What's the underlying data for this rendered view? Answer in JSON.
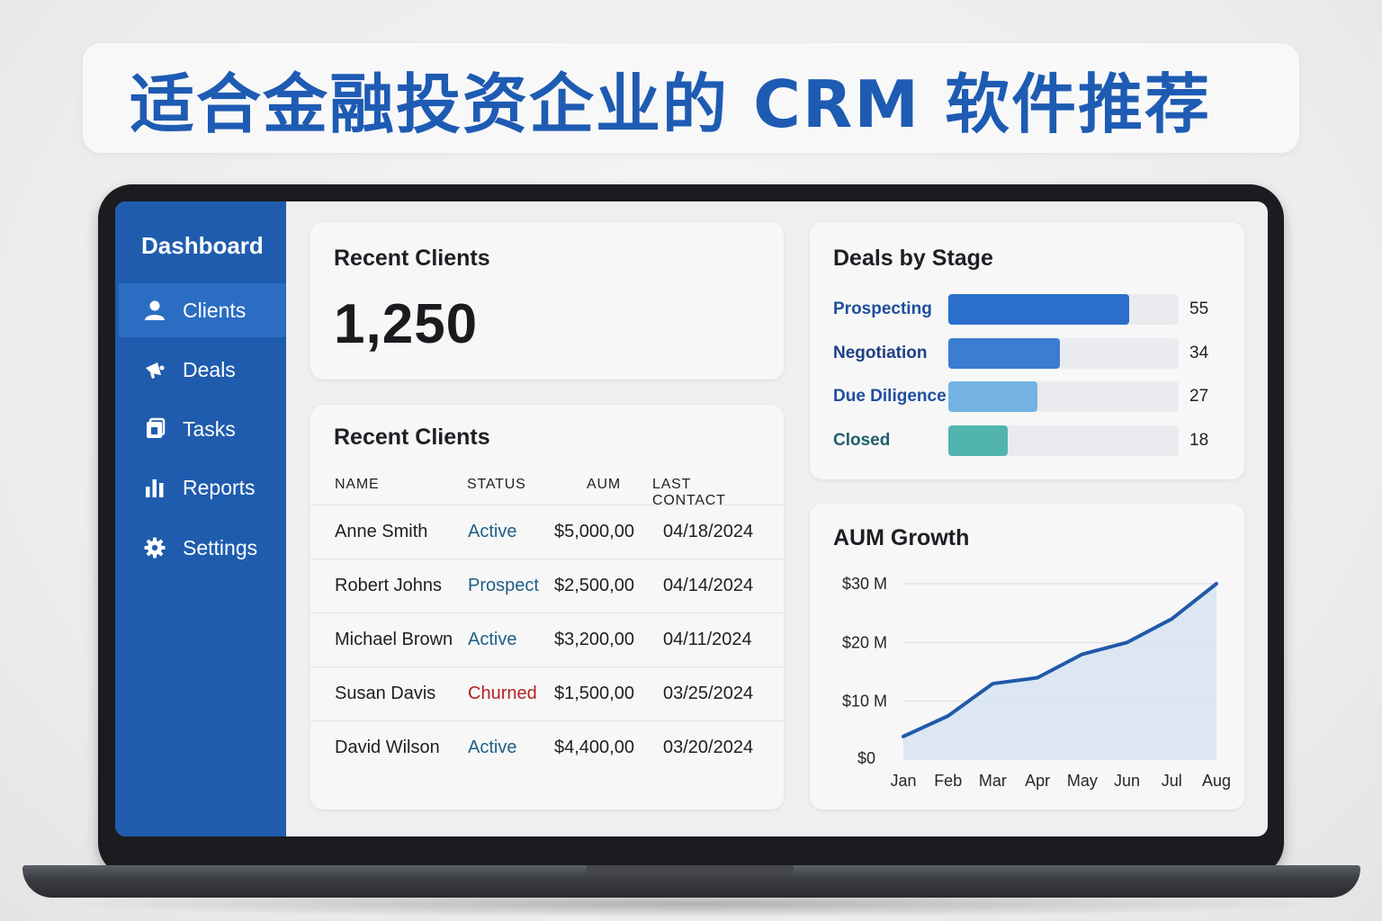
{
  "banner": {
    "title": "适合金融投资企业的 CRM 软件推荐"
  },
  "sidebar": {
    "title": "Dashboard",
    "items": [
      {
        "label": "Clients",
        "icon": "user-icon",
        "active": true
      },
      {
        "label": "Deals",
        "icon": "megaphone-icon",
        "active": false
      },
      {
        "label": "Tasks",
        "icon": "tasks-icon",
        "active": false
      },
      {
        "label": "Reports",
        "icon": "bar-chart-icon",
        "active": false
      },
      {
        "label": "Settings",
        "icon": "gear-icon",
        "active": false
      }
    ]
  },
  "summary": {
    "title": "Recent Clients",
    "count": "1,250"
  },
  "clients_table": {
    "title": "Recent Clients",
    "headers": [
      "NAME",
      "STATUS",
      "AUM",
      "LAST CONTACT"
    ],
    "rows": [
      {
        "name": "Anne Smith",
        "status": "Active",
        "aum": "$5,000,00",
        "last_contact": "04/18/2024"
      },
      {
        "name": "Robert Johns",
        "status": "Prospect",
        "aum": "$2,500,00",
        "last_contact": "04/14/2024"
      },
      {
        "name": "Michael Brown",
        "status": "Active",
        "aum": "$3,200,00",
        "last_contact": "04/11/2024"
      },
      {
        "name": "Susan Davis",
        "status": "Churned",
        "aum": "$1,500,00",
        "last_contact": "03/25/2024"
      },
      {
        "name": "David Wilson",
        "status": "Active",
        "aum": "$4,400,00",
        "last_contact": "03/20/2024"
      }
    ],
    "status_colors": {
      "Active": "#1e5f86",
      "Prospect": "#1e5f86",
      "Churned": "#b52222"
    }
  },
  "deals": {
    "title": "Deals by Stage",
    "stages": [
      {
        "label": "Prospecting",
        "value": "55",
        "label_color": "#1f4f9e",
        "bar_color": "#2b6fcb"
      },
      {
        "label": "Negotiation",
        "value": "34",
        "label_color": "#1f3f86",
        "bar_color": "#3b7dd1"
      },
      {
        "label": "Due Diligence",
        "value": "27",
        "label_color": "#1f4f9e",
        "bar_color": "#74b3e3"
      },
      {
        "label": "Closed",
        "value": "18",
        "label_color": "#1e5f6a",
        "bar_color": "#52b4ae"
      }
    ]
  },
  "chart_data": {
    "type": "area",
    "title": "AUM Growth",
    "x": [
      "Jan",
      "Feb",
      "Mar",
      "Apr",
      "May",
      "Jun",
      "Jul",
      "Aug"
    ],
    "y_ticks": [
      "$0",
      "$10 M",
      "$20 M",
      "$30 M"
    ],
    "y_tick_values": [
      0,
      10,
      20,
      30
    ],
    "ylim": [
      0,
      30
    ],
    "series": [
      {
        "values": [
          4,
          7.5,
          13,
          14,
          18,
          20,
          24,
          30
        ]
      }
    ],
    "line_color": "#2159a8",
    "fill_color": "#d7e4f2",
    "grid": true
  }
}
